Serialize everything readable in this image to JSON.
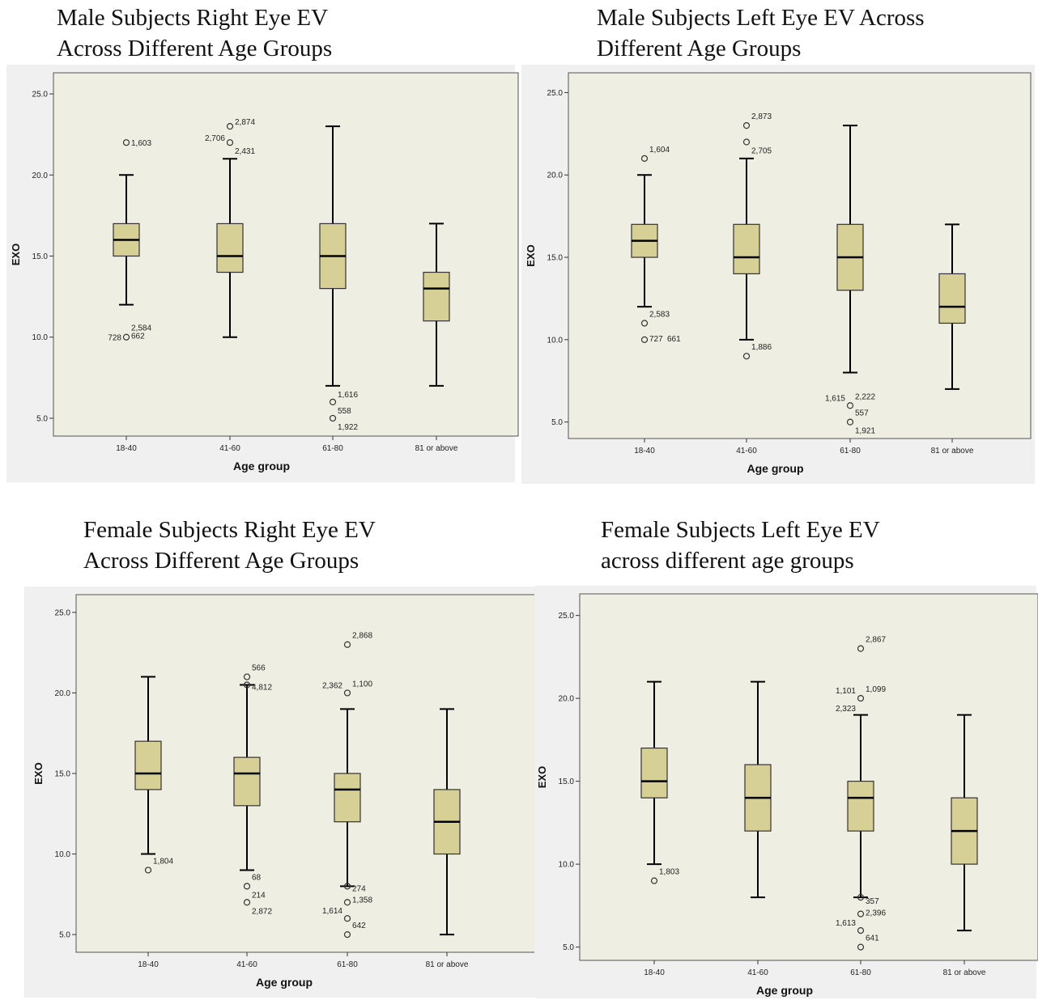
{
  "chart_data": [
    {
      "type": "box",
      "title": [
        "Male Subjects Right Eye EV",
        "Across Different Age Groups"
      ],
      "xlabel": "Age group",
      "ylabel": "EXO",
      "ylim": [
        3.9,
        26.3
      ],
      "yticks": [
        "5.0",
        "10.0",
        "15.0",
        "20.0",
        "25.0"
      ],
      "ytick_values": [
        5,
        10,
        15,
        20,
        25
      ],
      "categories": [
        "18-40",
        "41-60",
        "61-80",
        "81 or above"
      ],
      "boxes": [
        {
          "min": 12,
          "q1": 15,
          "median": 16,
          "q3": 17,
          "max": 20
        },
        {
          "min": 10,
          "q1": 14,
          "median": 15,
          "q3": 17,
          "max": 21
        },
        {
          "min": 7,
          "q1": 13,
          "median": 15,
          "q3": 17,
          "max": 23
        },
        {
          "min": 7,
          "q1": 11,
          "median": 13,
          "q3": 14,
          "max": 17
        }
      ],
      "outliers": [
        {
          "cat": 0,
          "y": 22,
          "label": "1,603",
          "side": "right"
        },
        {
          "cat": 0,
          "y": 10,
          "label": "2,584",
          "side": "right",
          "dy": -12
        },
        {
          "cat": 0,
          "y": 10,
          "label": "728",
          "side": "left"
        },
        {
          "cat": 0,
          "y": 10,
          "label": "662",
          "side": "right",
          "dy": -2
        },
        {
          "cat": 1,
          "y": 23,
          "label": "2,874",
          "side": "right",
          "dy": -6
        },
        {
          "cat": 1,
          "y": 22,
          "label": "2,706",
          "side": "left",
          "dy": -6
        },
        {
          "cat": 1,
          "y": 22,
          "label": "2,431",
          "side": "right",
          "dy": 10
        },
        {
          "cat": 2,
          "y": 6,
          "label": "1,616",
          "side": "right",
          "dy": -10
        },
        {
          "cat": 2,
          "y": 6,
          "label": "558",
          "side": "right",
          "dy": 10
        },
        {
          "cat": 2,
          "y": 5,
          "label": "1,922",
          "side": "right",
          "dy": 10
        }
      ]
    },
    {
      "type": "box",
      "title": [
        "Male Subjects Left Eye EV Across",
        "Different Age Groups"
      ],
      "xlabel": "Age group",
      "ylabel": "EXO",
      "ylim": [
        4.0,
        26.2
      ],
      "yticks": [
        "5.0",
        "10.0",
        "15.0",
        "20.0",
        "25.0"
      ],
      "ytick_values": [
        5,
        10,
        15,
        20,
        25
      ],
      "categories": [
        "18-40",
        "41-60",
        "61-80",
        "81 or above"
      ],
      "boxes": [
        {
          "min": 12,
          "q1": 15,
          "median": 16,
          "q3": 17,
          "max": 20
        },
        {
          "min": 10,
          "q1": 14,
          "median": 15,
          "q3": 17,
          "max": 21
        },
        {
          "min": 8,
          "q1": 13,
          "median": 15,
          "q3": 17,
          "max": 23
        },
        {
          "min": 7,
          "q1": 11,
          "median": 12,
          "q3": 14,
          "max": 17
        }
      ],
      "outliers": [
        {
          "cat": 0,
          "y": 21,
          "label": "1,604",
          "side": "right",
          "dy": -12
        },
        {
          "cat": 0,
          "y": 11,
          "label": "2,583",
          "side": "right",
          "dy": -12
        },
        {
          "cat": 0,
          "y": 10,
          "label": "727",
          "side": "right",
          "dy": -2
        },
        {
          "cat": 0,
          "y": 10,
          "label": "661",
          "side": "right",
          "dx": 22,
          "dy": -2
        },
        {
          "cat": 1,
          "y": 23,
          "label": "2,873",
          "side": "right",
          "dy": -12
        },
        {
          "cat": 1,
          "y": 22,
          "label": "2,705",
          "side": "right",
          "dy": 10
        },
        {
          "cat": 1,
          "y": 9,
          "label": "1,886",
          "side": "right",
          "dy": -12
        },
        {
          "cat": 2,
          "y": 6,
          "label": "1,615",
          "side": "left",
          "dy": -10
        },
        {
          "cat": 2,
          "y": 6,
          "label": "2,222",
          "side": "right",
          "dy": -12
        },
        {
          "cat": 2,
          "y": 6,
          "label": "557",
          "side": "right",
          "dy": 8
        },
        {
          "cat": 2,
          "y": 5,
          "label": "1,921",
          "side": "right",
          "dy": 10
        }
      ]
    },
    {
      "type": "box",
      "title": [
        "Female Subjects Right Eye EV",
        "Across Different Age Groups"
      ],
      "xlabel": "Age group",
      "ylabel": "EXO",
      "ylim": [
        3.9,
        26.1
      ],
      "yticks": [
        "5.0",
        "10.0",
        "15.0",
        "20.0",
        "25.0"
      ],
      "ytick_values": [
        5,
        10,
        15,
        20,
        25
      ],
      "categories": [
        "18-40",
        "41-60",
        "61-80",
        "81 or above"
      ],
      "boxes": [
        {
          "min": 10,
          "q1": 14,
          "median": 15,
          "q3": 17,
          "max": 21
        },
        {
          "min": 9,
          "q1": 13,
          "median": 15,
          "q3": 16,
          "max": 20.5
        },
        {
          "min": 8,
          "q1": 12,
          "median": 14,
          "q3": 15,
          "max": 19
        },
        {
          "min": 5,
          "q1": 10,
          "median": 12,
          "q3": 14,
          "max": 19
        }
      ],
      "outliers": [
        {
          "cat": 0,
          "y": 9,
          "label": "1,804",
          "side": "right",
          "dy": -12
        },
        {
          "cat": 1,
          "y": 21,
          "label": "566",
          "side": "right",
          "dy": -12
        },
        {
          "cat": 1,
          "y": 20.5,
          "label": "4,812",
          "side": "right",
          "dy": 2
        },
        {
          "cat": 1,
          "y": 8,
          "label": "68",
          "side": "right",
          "dy": -12
        },
        {
          "cat": 1,
          "y": 7,
          "label": "214",
          "side": "right",
          "dy": -10
        },
        {
          "cat": 1,
          "y": 7,
          "label": "2,872",
          "side": "right",
          "dy": 10
        },
        {
          "cat": 2,
          "y": 23,
          "label": "2,868",
          "side": "right",
          "dy": -12
        },
        {
          "cat": 2,
          "y": 20,
          "label": "2,362",
          "side": "left",
          "dy": -10
        },
        {
          "cat": 2,
          "y": 20,
          "label": "1,100",
          "side": "right",
          "dy": -12
        },
        {
          "cat": 2,
          "y": 8,
          "label": "274",
          "side": "right",
          "dy": 2
        },
        {
          "cat": 2,
          "y": 7,
          "label": "1,358",
          "side": "right",
          "dy": -4
        },
        {
          "cat": 2,
          "y": 6,
          "label": "1,614",
          "side": "left",
          "dy": -10
        },
        {
          "cat": 2,
          "y": 5,
          "label": "642",
          "side": "right",
          "dy": -12
        }
      ]
    },
    {
      "type": "box",
      "title": [
        "Female Subjects Left Eye EV",
        "across different age groups"
      ],
      "xlabel": "Age group",
      "ylabel": "EXO",
      "ylim": [
        4.2,
        26.3
      ],
      "yticks": [
        "5.0",
        "10.0",
        "15.0",
        "20.0",
        "25.0"
      ],
      "ytick_values": [
        5,
        10,
        15,
        20,
        25
      ],
      "categories": [
        "18-40",
        "41-60",
        "61-80",
        "81 or above"
      ],
      "boxes": [
        {
          "min": 10,
          "q1": 14,
          "median": 15,
          "q3": 17,
          "max": 21
        },
        {
          "min": 8,
          "q1": 12,
          "median": 14,
          "q3": 16,
          "max": 21
        },
        {
          "min": 8,
          "q1": 12,
          "median": 14,
          "q3": 15,
          "max": 19
        },
        {
          "min": 6,
          "q1": 10,
          "median": 12,
          "q3": 14,
          "max": 19
        }
      ],
      "outliers": [
        {
          "cat": 0,
          "y": 9,
          "label": "1,803",
          "side": "right",
          "dy": -12
        },
        {
          "cat": 2,
          "y": 23,
          "label": "2,867",
          "side": "right",
          "dy": -12
        },
        {
          "cat": 2,
          "y": 20,
          "label": "1,101",
          "side": "left",
          "dy": -10
        },
        {
          "cat": 2,
          "y": 20,
          "label": "1,099",
          "side": "right",
          "dy": -12
        },
        {
          "cat": 2,
          "y": 20,
          "label": "2,323",
          "side": "left",
          "dy": 12
        },
        {
          "cat": 2,
          "y": 8,
          "label": "357",
          "side": "right",
          "dy": 4
        },
        {
          "cat": 2,
          "y": 7,
          "label": "2,396",
          "side": "right",
          "dy": -2
        },
        {
          "cat": 2,
          "y": 6,
          "label": "1,613",
          "side": "left",
          "dy": -10
        },
        {
          "cat": 2,
          "y": 5,
          "label": "641",
          "side": "right",
          "dy": -12
        }
      ]
    }
  ]
}
